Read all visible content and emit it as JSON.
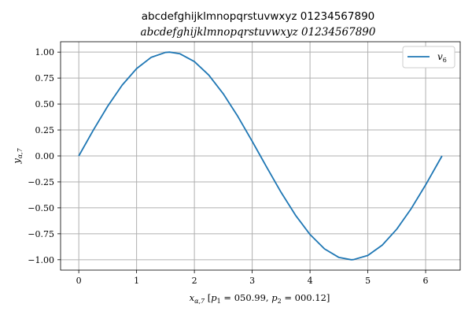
{
  "chart_data": {
    "type": "line",
    "title": "abcdefghijklmnopqrstuvwxyz 01234567890",
    "subtitle": "abcdefghijklmnopqrstuvwxyz 01234567890",
    "xlabel": "x_{α,7} [p_1 = 050.99, p_2 = 000.12]",
    "ylabel": "y_{α,7}",
    "xlim": [
      -0.315,
      6.598
    ],
    "ylim": [
      -1.1,
      1.1
    ],
    "x_ticks": [
      0,
      1,
      2,
      3,
      4,
      5,
      6
    ],
    "x_tick_labels": [
      "0",
      "1",
      "2",
      "3",
      "4",
      "5",
      "6"
    ],
    "y_ticks": [
      1.0,
      0.75,
      0.5,
      0.25,
      0.0,
      -0.25,
      -0.5,
      -0.75,
      -1.0
    ],
    "y_tick_labels": [
      "1.00",
      "0.75",
      "0.50",
      "0.25",
      "0.00",
      "−0.25",
      "−0.50",
      "−0.75",
      "−1.00"
    ],
    "grid": true,
    "legend_position": "top-right",
    "series": [
      {
        "name": "v_6",
        "color": "#1f77b4",
        "x": [
          0,
          0.25,
          0.5,
          0.75,
          1.0,
          1.25,
          1.5,
          1.5708,
          1.75,
          2.0,
          2.25,
          2.5,
          2.75,
          3.0,
          3.1416,
          3.25,
          3.5,
          3.75,
          4.0,
          4.25,
          4.5,
          4.7124,
          4.75,
          5.0,
          5.25,
          5.5,
          5.75,
          6.0,
          6.2832
        ],
        "y": [
          0,
          0.247,
          0.479,
          0.682,
          0.841,
          0.949,
          0.997,
          1.0,
          0.984,
          0.909,
          0.778,
          0.598,
          0.382,
          0.141,
          0.0,
          -0.108,
          -0.351,
          -0.572,
          -0.757,
          -0.895,
          -0.978,
          -1.0,
          -0.999,
          -0.959,
          -0.859,
          -0.706,
          -0.508,
          -0.279,
          0.0
        ]
      }
    ]
  }
}
